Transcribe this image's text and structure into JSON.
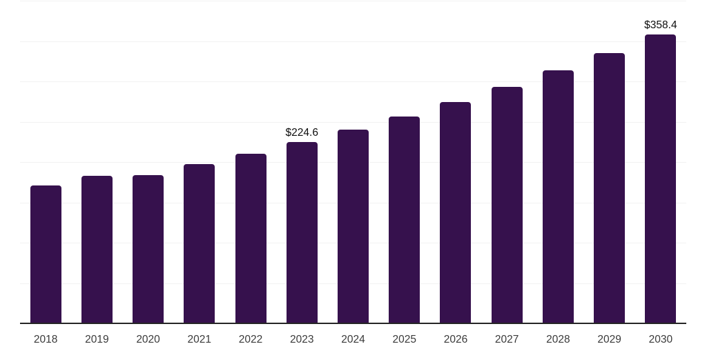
{
  "chart_data": {
    "type": "bar",
    "title": "",
    "xlabel": "",
    "ylabel": "",
    "categories": [
      "2018",
      "2019",
      "2020",
      "2021",
      "2022",
      "2023",
      "2024",
      "2025",
      "2026",
      "2027",
      "2028",
      "2029",
      "2030"
    ],
    "values": [
      170.9,
      182.9,
      184.2,
      197.3,
      210.6,
      224.6,
      240.1,
      256.7,
      274.4,
      293.3,
      313.6,
      335.2,
      358.4
    ],
    "labels": [
      "",
      "",
      "",
      "",
      "",
      "$224.6",
      "",
      "",
      "",
      "",
      "",
      "",
      "$358.4"
    ],
    "ylim": [
      0,
      400
    ],
    "grid": true,
    "gridline_step": 50,
    "legend": false,
    "colors": {
      "bar": "#36114d",
      "gridline": "#f2f2f2",
      "axis": "#262626",
      "tick_label": "#3a3a3a",
      "value_label": "#0d0d0d"
    }
  }
}
